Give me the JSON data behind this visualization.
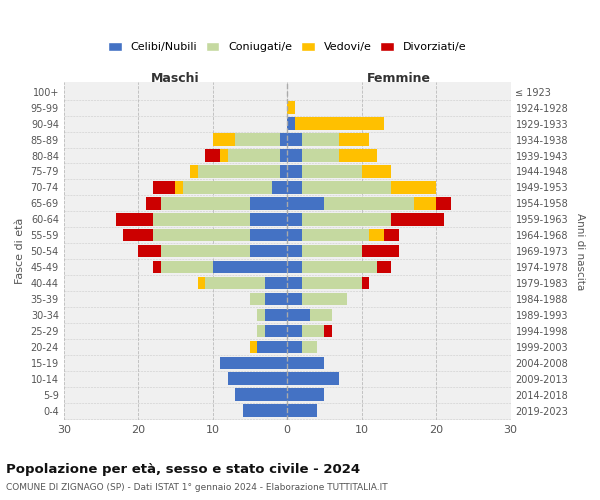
{
  "age_groups": [
    "0-4",
    "5-9",
    "10-14",
    "15-19",
    "20-24",
    "25-29",
    "30-34",
    "35-39",
    "40-44",
    "45-49",
    "50-54",
    "55-59",
    "60-64",
    "65-69",
    "70-74",
    "75-79",
    "80-84",
    "85-89",
    "90-94",
    "95-99",
    "100+"
  ],
  "birth_years": [
    "2019-2023",
    "2014-2018",
    "2009-2013",
    "2004-2008",
    "1999-2003",
    "1994-1998",
    "1989-1993",
    "1984-1988",
    "1979-1983",
    "1974-1978",
    "1969-1973",
    "1964-1968",
    "1959-1963",
    "1954-1958",
    "1949-1953",
    "1944-1948",
    "1939-1943",
    "1934-1938",
    "1929-1933",
    "1924-1928",
    "≤ 1923"
  ],
  "maschi": {
    "celibi": [
      6,
      7,
      8,
      9,
      4,
      3,
      3,
      3,
      3,
      10,
      5,
      5,
      5,
      5,
      2,
      1,
      1,
      1,
      0,
      0,
      0
    ],
    "coniugati": [
      0,
      0,
      0,
      0,
      0,
      1,
      1,
      2,
      8,
      7,
      12,
      13,
      13,
      12,
      12,
      11,
      7,
      6,
      0,
      0,
      0
    ],
    "vedovi": [
      0,
      0,
      0,
      0,
      1,
      0,
      0,
      0,
      1,
      0,
      0,
      0,
      0,
      0,
      1,
      1,
      1,
      3,
      0,
      0,
      0
    ],
    "divorziati": [
      0,
      0,
      0,
      0,
      0,
      0,
      0,
      0,
      0,
      1,
      3,
      4,
      5,
      2,
      3,
      0,
      2,
      0,
      0,
      0,
      0
    ]
  },
  "femmine": {
    "nubili": [
      4,
      5,
      7,
      5,
      2,
      2,
      3,
      2,
      2,
      2,
      2,
      2,
      2,
      5,
      2,
      2,
      2,
      2,
      1,
      0,
      0
    ],
    "coniugate": [
      0,
      0,
      0,
      0,
      2,
      3,
      3,
      6,
      8,
      10,
      8,
      9,
      12,
      12,
      12,
      8,
      5,
      5,
      0,
      0,
      0
    ],
    "vedove": [
      0,
      0,
      0,
      0,
      0,
      0,
      0,
      0,
      0,
      0,
      0,
      2,
      0,
      3,
      6,
      4,
      5,
      4,
      12,
      1,
      0
    ],
    "divorziate": [
      0,
      0,
      0,
      0,
      0,
      1,
      0,
      0,
      1,
      2,
      5,
      2,
      7,
      2,
      0,
      0,
      0,
      0,
      0,
      0,
      0
    ]
  },
  "colors": {
    "celibi_nubili": "#4472c4",
    "coniugati": "#c5d9a0",
    "vedovi": "#ffc000",
    "divorziati": "#cc0000"
  },
  "title_main": "Popolazione per età, sesso e stato civile - 2024",
  "title_sub": "COMUNE DI ZIGNAGO (SP) - Dati ISTAT 1° gennaio 2024 - Elaborazione TUTTITALIA.IT",
  "xlabel_left": "Maschi",
  "xlabel_right": "Femmine",
  "ylabel_left": "Fasce di età",
  "ylabel_right": "Anni di nascita",
  "xlim": 30,
  "legend_labels": [
    "Celibi/Nubili",
    "Coniugati/e",
    "Vedovi/e",
    "Divorziati/e"
  ],
  "background_color": "#ffffff",
  "plot_bg": "#f0f0f0",
  "grid_color": "#cccccc"
}
